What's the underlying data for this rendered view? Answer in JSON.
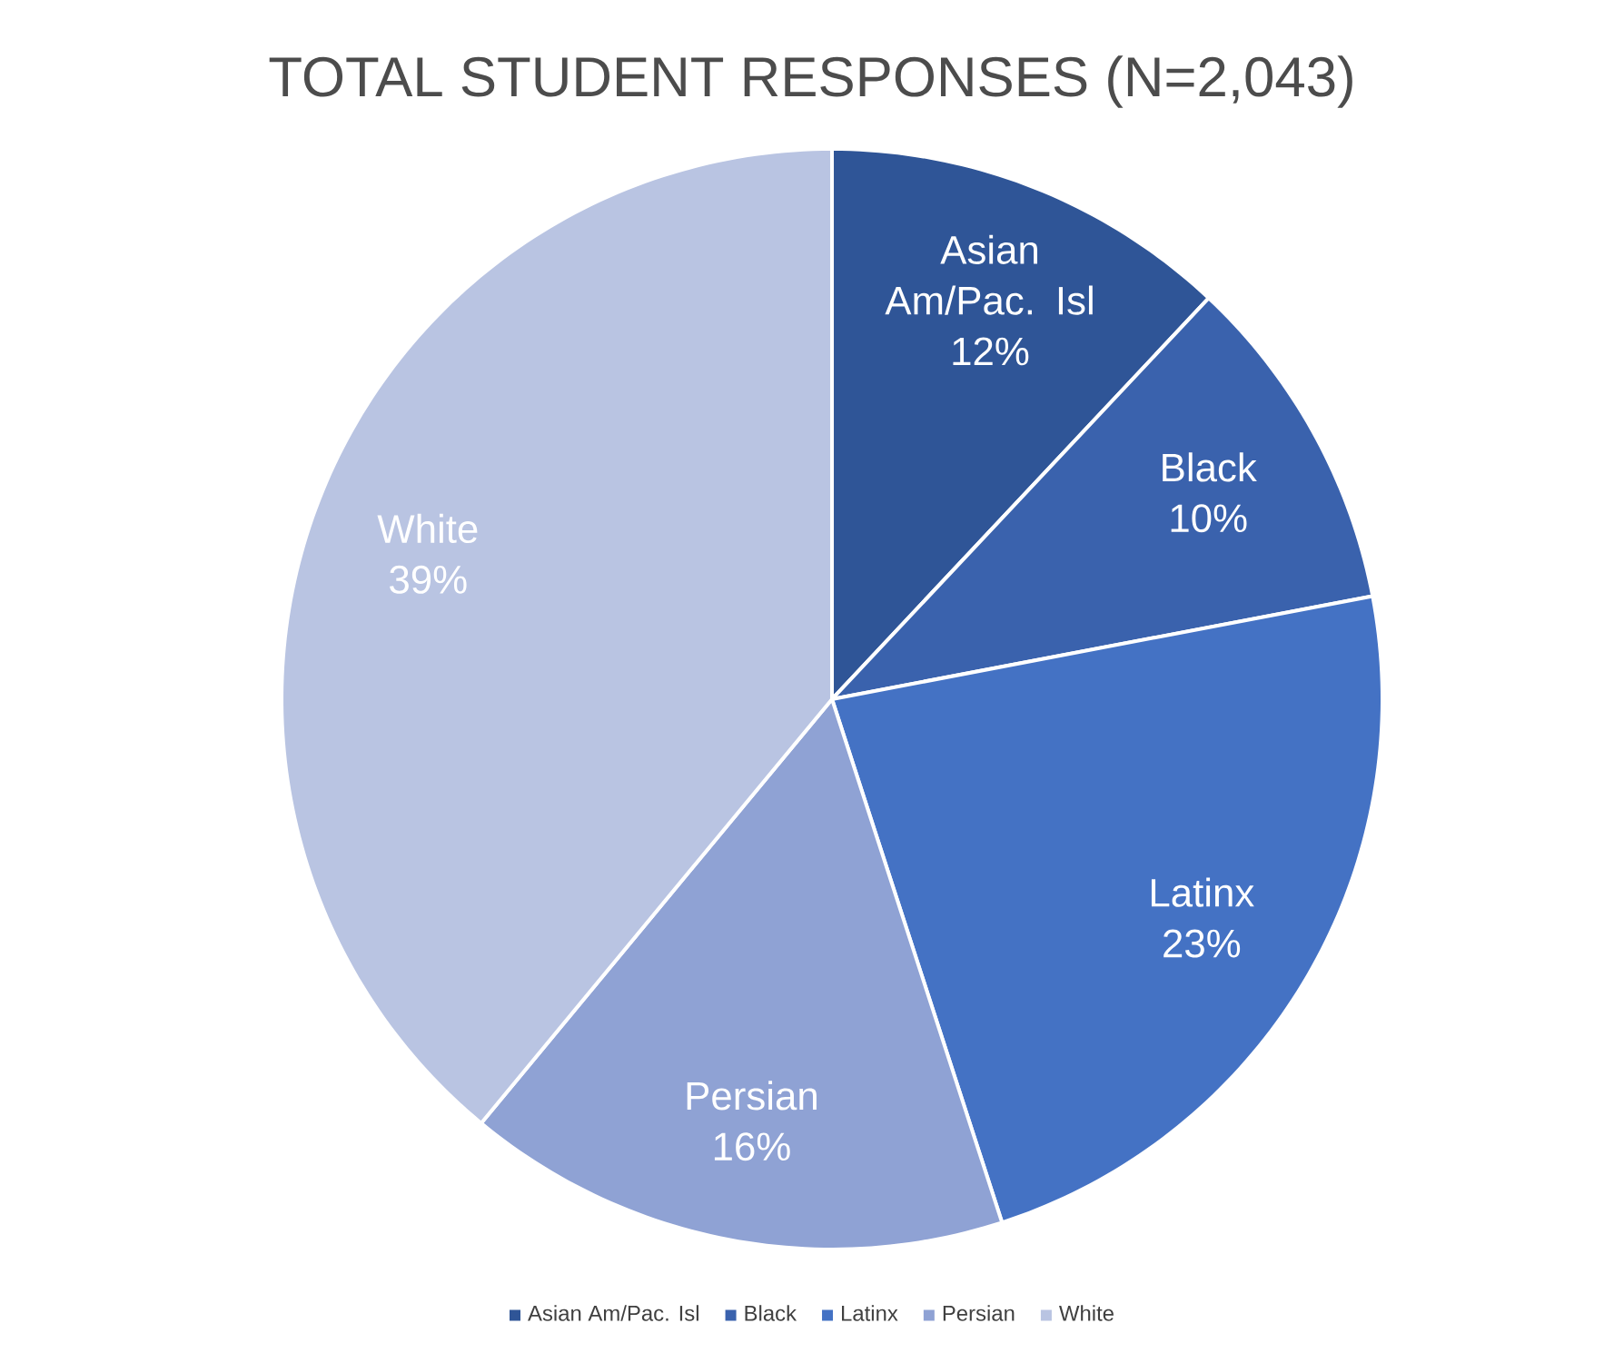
{
  "chart_data": {
    "type": "pie",
    "title": "TOTAL STUDENT RESPONSES (N=2,043)",
    "categories": [
      "Asian Am/Pac. Isl",
      "Black",
      "Latinx",
      "Persian",
      "White"
    ],
    "values": [
      12,
      10,
      23,
      16,
      39
    ],
    "value_labels": [
      "12%",
      "10%",
      "23%",
      "16%",
      "39%"
    ],
    "colors": [
      "#2f5597",
      "#3a62ad",
      "#4472c4",
      "#8fa2d4",
      "#b9c4e2"
    ],
    "legend": "bottom"
  }
}
